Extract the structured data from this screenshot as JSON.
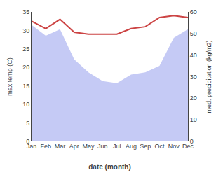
{
  "chart_data": {
    "type": "line",
    "xlabel": "date (month)",
    "ylabel": "max temp (C)",
    "y2label": "med. precipitation (kg/m2)",
    "categories": [
      "Jan",
      "Feb",
      "Mar",
      "Apr",
      "May",
      "Jun",
      "Jul",
      "Aug",
      "Sep",
      "Oct",
      "Nov",
      "Dec"
    ],
    "series": [
      {
        "type": "area",
        "axis": "y2",
        "color": "#c5caf5",
        "values": [
          54,
          49,
          52,
          38,
          32,
          28,
          27,
          31,
          32,
          35,
          48,
          52
        ]
      },
      {
        "type": "line",
        "color": "#cc4444",
        "values": [
          32.5,
          30.5,
          33.0,
          29.5,
          29.0,
          29.0,
          29.0,
          30.5,
          31.0,
          33.5,
          34.0,
          33.5
        ]
      }
    ],
    "ylim": [
      0,
      35
    ],
    "yticks": [
      0,
      5,
      10,
      15,
      20,
      25,
      30,
      35
    ],
    "y2lim": [
      0,
      60
    ],
    "y2ticks": [
      0,
      10,
      20,
      30,
      40,
      50,
      60
    ],
    "grid": false
  }
}
